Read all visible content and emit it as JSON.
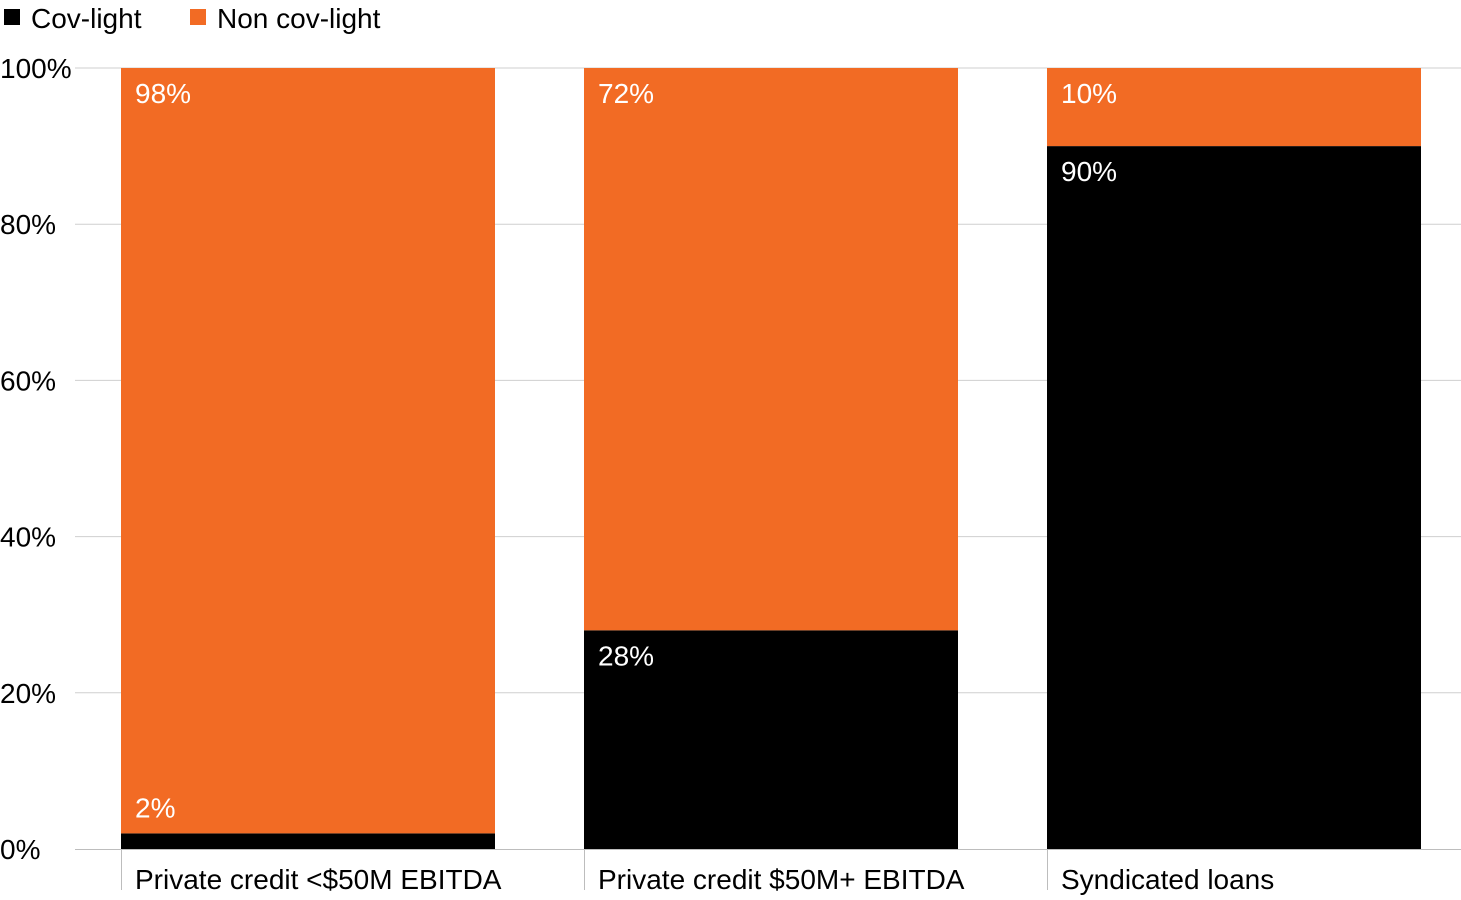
{
  "chart_data": {
    "type": "bar",
    "stacked": true,
    "categories": [
      "Private credit <$50M EBITDA",
      "Private credit $50M+ EBITDA",
      "Syndicated loans"
    ],
    "series": [
      {
        "name": "Cov-light",
        "values": [
          2,
          28,
          90
        ],
        "color": "#000000",
        "labels": [
          "2%",
          "28%",
          "90%"
        ]
      },
      {
        "name": "Non cov-light",
        "values": [
          98,
          72,
          10
        ],
        "color": "#f26b24",
        "labels": [
          "98%",
          "72%",
          "10%"
        ]
      }
    ],
    "ylim": [
      0,
      100
    ],
    "yticks": [
      0,
      20,
      40,
      60,
      80,
      100
    ],
    "ytick_labels": [
      "0%",
      "20%",
      "40%",
      "60%",
      "80%",
      "100%"
    ],
    "grid": true,
    "legend": "top-left",
    "title": "",
    "xlabel": "",
    "ylabel": ""
  }
}
